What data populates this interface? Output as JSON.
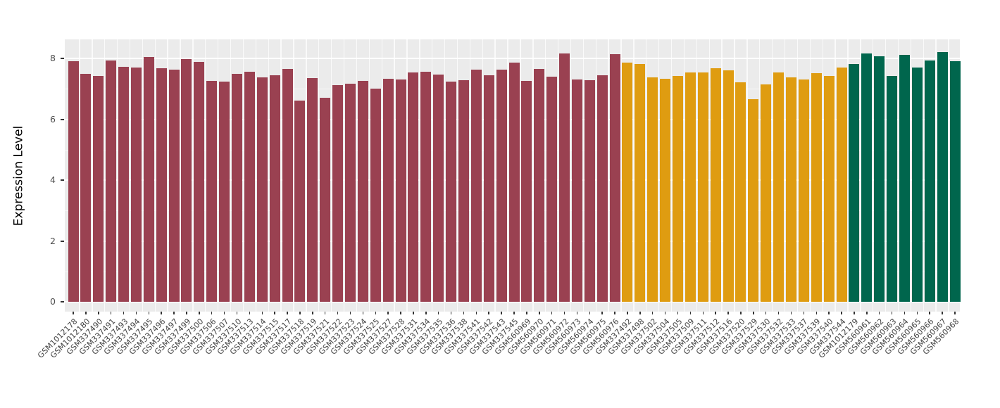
{
  "chart_data": {
    "type": "bar",
    "title": "",
    "xlabel": "",
    "ylabel": "Expression Level",
    "ylim": [
      0,
      8.62
    ],
    "yticks": [
      0,
      2,
      4,
      6,
      8
    ],
    "minor_yticks": [
      1,
      3,
      5,
      7
    ],
    "grid": true,
    "legend_position": "none",
    "panel_background": "#EBEBEB",
    "background": "#FFFFFF",
    "groups": [
      {
        "name": "group-1-maroon",
        "color": "#9A4151"
      },
      {
        "name": "group-2-orange",
        "color": "#DF9C11"
      },
      {
        "name": "group-3-green",
        "color": "#00664D"
      }
    ],
    "samples": [
      {
        "id": "GSM1012178",
        "value": 7.91,
        "group": 0
      },
      {
        "id": "GSM1012180",
        "value": 7.48,
        "group": 0
      },
      {
        "id": "GSM337490",
        "value": 7.42,
        "group": 0
      },
      {
        "id": "GSM337491",
        "value": 7.92,
        "group": 0
      },
      {
        "id": "GSM337493",
        "value": 7.72,
        "group": 0
      },
      {
        "id": "GSM337494",
        "value": 7.7,
        "group": 0
      },
      {
        "id": "GSM337495",
        "value": 8.05,
        "group": 0
      },
      {
        "id": "GSM337496",
        "value": 7.67,
        "group": 0
      },
      {
        "id": "GSM337497",
        "value": 7.62,
        "group": 0
      },
      {
        "id": "GSM337499",
        "value": 7.98,
        "group": 0
      },
      {
        "id": "GSM337500",
        "value": 7.88,
        "group": 0
      },
      {
        "id": "GSM337506",
        "value": 7.27,
        "group": 0
      },
      {
        "id": "GSM337507",
        "value": 7.24,
        "group": 0
      },
      {
        "id": "GSM337510",
        "value": 7.48,
        "group": 0
      },
      {
        "id": "GSM337513",
        "value": 7.56,
        "group": 0
      },
      {
        "id": "GSM337514",
        "value": 7.37,
        "group": 0
      },
      {
        "id": "GSM337515",
        "value": 7.44,
        "group": 0
      },
      {
        "id": "GSM337517",
        "value": 7.66,
        "group": 0
      },
      {
        "id": "GSM337518",
        "value": 6.62,
        "group": 0
      },
      {
        "id": "GSM337519",
        "value": 7.36,
        "group": 0
      },
      {
        "id": "GSM337521",
        "value": 6.7,
        "group": 0
      },
      {
        "id": "GSM337522",
        "value": 7.13,
        "group": 0
      },
      {
        "id": "GSM337523",
        "value": 7.16,
        "group": 0
      },
      {
        "id": "GSM337524",
        "value": 7.25,
        "group": 0
      },
      {
        "id": "GSM337525",
        "value": 7.01,
        "group": 0
      },
      {
        "id": "GSM337527",
        "value": 7.32,
        "group": 0
      },
      {
        "id": "GSM337528",
        "value": 7.3,
        "group": 0
      },
      {
        "id": "GSM337531",
        "value": 7.54,
        "group": 0
      },
      {
        "id": "GSM337534",
        "value": 7.57,
        "group": 0
      },
      {
        "id": "GSM337535",
        "value": 7.46,
        "group": 0
      },
      {
        "id": "GSM337536",
        "value": 7.24,
        "group": 0
      },
      {
        "id": "GSM337538",
        "value": 7.28,
        "group": 0
      },
      {
        "id": "GSM337541",
        "value": 7.64,
        "group": 0
      },
      {
        "id": "GSM337542",
        "value": 7.44,
        "group": 0
      },
      {
        "id": "GSM337543",
        "value": 7.64,
        "group": 0
      },
      {
        "id": "GSM337545",
        "value": 7.85,
        "group": 0
      },
      {
        "id": "GSM560969",
        "value": 7.26,
        "group": 0
      },
      {
        "id": "GSM560970",
        "value": 7.66,
        "group": 0
      },
      {
        "id": "GSM560971",
        "value": 7.39,
        "group": 0
      },
      {
        "id": "GSM560972",
        "value": 8.16,
        "group": 0
      },
      {
        "id": "GSM560973",
        "value": 7.31,
        "group": 0
      },
      {
        "id": "GSM560974",
        "value": 7.28,
        "group": 0
      },
      {
        "id": "GSM560975",
        "value": 7.44,
        "group": 0
      },
      {
        "id": "GSM560976",
        "value": 8.15,
        "group": 0
      },
      {
        "id": "GSM337492",
        "value": 7.85,
        "group": 1
      },
      {
        "id": "GSM337498",
        "value": 7.82,
        "group": 1
      },
      {
        "id": "GSM337502",
        "value": 7.37,
        "group": 1
      },
      {
        "id": "GSM337504",
        "value": 7.34,
        "group": 1
      },
      {
        "id": "GSM337505",
        "value": 7.43,
        "group": 1
      },
      {
        "id": "GSM337509",
        "value": 7.53,
        "group": 1
      },
      {
        "id": "GSM337511",
        "value": 7.54,
        "group": 1
      },
      {
        "id": "GSM337512",
        "value": 7.68,
        "group": 1
      },
      {
        "id": "GSM337516",
        "value": 7.61,
        "group": 1
      },
      {
        "id": "GSM337520",
        "value": 7.22,
        "group": 1
      },
      {
        "id": "GSM337529",
        "value": 6.67,
        "group": 1
      },
      {
        "id": "GSM337530",
        "value": 7.14,
        "group": 1
      },
      {
        "id": "GSM337532",
        "value": 7.54,
        "group": 1
      },
      {
        "id": "GSM337533",
        "value": 7.38,
        "group": 1
      },
      {
        "id": "GSM337537",
        "value": 7.3,
        "group": 1
      },
      {
        "id": "GSM337539",
        "value": 7.51,
        "group": 1
      },
      {
        "id": "GSM337540",
        "value": 7.42,
        "group": 1
      },
      {
        "id": "GSM337544",
        "value": 7.69,
        "group": 1
      },
      {
        "id": "GSM1012179",
        "value": 7.82,
        "group": 2
      },
      {
        "id": "GSM560961",
        "value": 8.17,
        "group": 2
      },
      {
        "id": "GSM560962",
        "value": 8.08,
        "group": 2
      },
      {
        "id": "GSM560963",
        "value": 7.42,
        "group": 2
      },
      {
        "id": "GSM560964",
        "value": 8.12,
        "group": 2
      },
      {
        "id": "GSM560965",
        "value": 7.71,
        "group": 2
      },
      {
        "id": "GSM560966",
        "value": 7.93,
        "group": 2
      },
      {
        "id": "GSM560967",
        "value": 8.21,
        "group": 2
      },
      {
        "id": "GSM560968",
        "value": 7.91,
        "group": 2
      }
    ]
  }
}
